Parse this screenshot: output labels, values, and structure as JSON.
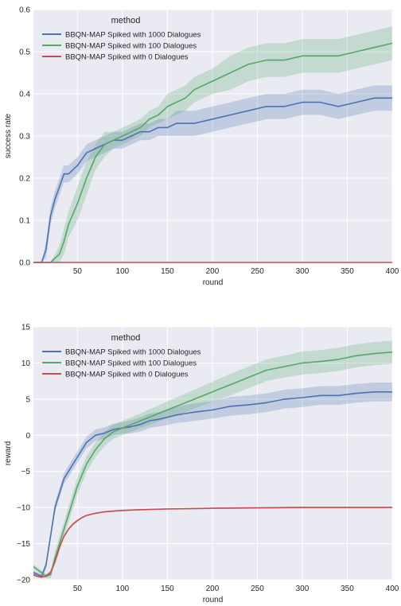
{
  "chart_data": [
    {
      "type": "line",
      "xlabel": "round",
      "ylabel": "success rate",
      "xlim": [
        1,
        400
      ],
      "ylim": [
        0.0,
        0.6
      ],
      "xticks": [
        50,
        100,
        150,
        200,
        250,
        300,
        350,
        400
      ],
      "yticks": [
        0.0,
        0.1,
        0.2,
        0.3,
        0.4,
        0.5,
        0.6
      ],
      "ytick_labels": [
        "0.0",
        "0.1",
        "0.2",
        "0.3",
        "0.4",
        "0.5",
        "0.6"
      ],
      "grid": true,
      "legend": {
        "title": "method",
        "placement": "top-left"
      },
      "series": [
        {
          "name": "BBQN-MAP Spiked with 1000 Dialogues",
          "color": "#4c72b0",
          "x": [
            1,
            10,
            15,
            20,
            25,
            30,
            35,
            40,
            50,
            60,
            70,
            80,
            90,
            100,
            110,
            120,
            130,
            140,
            150,
            160,
            170,
            180,
            200,
            220,
            240,
            260,
            280,
            300,
            320,
            340,
            360,
            380,
            400
          ],
          "y": [
            0.0,
            0.0,
            0.03,
            0.11,
            0.15,
            0.18,
            0.21,
            0.21,
            0.23,
            0.26,
            0.27,
            0.28,
            0.29,
            0.29,
            0.3,
            0.31,
            0.31,
            0.32,
            0.32,
            0.33,
            0.33,
            0.33,
            0.34,
            0.35,
            0.36,
            0.37,
            0.37,
            0.38,
            0.38,
            0.37,
            0.38,
            0.39,
            0.39
          ],
          "band": [
            0.0,
            0.0,
            0.02,
            0.02,
            0.02,
            0.02,
            0.02,
            0.02,
            0.02,
            0.02,
            0.02,
            0.02,
            0.02,
            0.02,
            0.02,
            0.02,
            0.02,
            0.02,
            0.02,
            0.03,
            0.03,
            0.03,
            0.03,
            0.03,
            0.03,
            0.03,
            0.03,
            0.03,
            0.03,
            0.03,
            0.03,
            0.03,
            0.03
          ]
        },
        {
          "name": "BBQN-MAP Spiked with 100 Dialogues",
          "color": "#55a868",
          "x": [
            1,
            20,
            25,
            30,
            35,
            40,
            50,
            60,
            70,
            80,
            90,
            100,
            110,
            120,
            130,
            140,
            150,
            160,
            170,
            180,
            200,
            220,
            240,
            260,
            280,
            300,
            320,
            340,
            360,
            380,
            400
          ],
          "y": [
            0.0,
            0.0,
            0.01,
            0.02,
            0.05,
            0.09,
            0.14,
            0.2,
            0.25,
            0.28,
            0.29,
            0.3,
            0.31,
            0.32,
            0.34,
            0.35,
            0.37,
            0.38,
            0.39,
            0.41,
            0.43,
            0.45,
            0.47,
            0.48,
            0.48,
            0.49,
            0.49,
            0.49,
            0.5,
            0.51,
            0.52
          ],
          "band": [
            0.0,
            0.0,
            0.01,
            0.02,
            0.03,
            0.03,
            0.04,
            0.04,
            0.03,
            0.03,
            0.02,
            0.02,
            0.02,
            0.02,
            0.02,
            0.02,
            0.03,
            0.03,
            0.03,
            0.03,
            0.03,
            0.04,
            0.04,
            0.04,
            0.04,
            0.04,
            0.04,
            0.04,
            0.04,
            0.04,
            0.04
          ]
        },
        {
          "name": "BBQN-MAP Spiked with 0 Dialogues",
          "color": "#c44e52",
          "x": [
            1,
            400
          ],
          "y": [
            0.0,
            0.0
          ],
          "band": [
            0.0,
            0.0
          ]
        }
      ]
    },
    {
      "type": "line",
      "xlabel": "round",
      "ylabel": "reward",
      "xlim": [
        1,
        400
      ],
      "ylim": [
        -20,
        15
      ],
      "xticks": [
        50,
        100,
        150,
        200,
        250,
        300,
        350,
        400
      ],
      "yticks": [
        -20,
        -15,
        -10,
        -5,
        0,
        5,
        10,
        15
      ],
      "ytick_labels": [
        "−20",
        "−15",
        "−10",
        "−5",
        "0",
        "5",
        "10",
        "15"
      ],
      "grid": true,
      "legend": {
        "title": "method",
        "placement": "top-left"
      },
      "series": [
        {
          "name": "BBQN-MAP Spiked with 1000 Dialogues",
          "color": "#4c72b0",
          "x": [
            1,
            10,
            15,
            20,
            25,
            30,
            35,
            40,
            50,
            60,
            70,
            80,
            90,
            100,
            110,
            120,
            130,
            140,
            150,
            160,
            170,
            180,
            200,
            220,
            240,
            260,
            280,
            300,
            320,
            340,
            360,
            380,
            400
          ],
          "y": [
            -19,
            -19.5,
            -18,
            -14,
            -10,
            -8,
            -6,
            -5,
            -3,
            -1,
            0,
            0.3,
            0.8,
            1,
            1.2,
            1.5,
            2,
            2.2,
            2.5,
            2.8,
            3,
            3.2,
            3.5,
            4,
            4.2,
            4.5,
            5,
            5.2,
            5.5,
            5.5,
            5.8,
            6,
            6
          ],
          "band": [
            0.3,
            0.3,
            0.5,
            0.6,
            0.7,
            0.7,
            0.7,
            0.8,
            0.8,
            0.8,
            0.8,
            0.8,
            0.8,
            0.8,
            0.9,
            1.0,
            1.0,
            1.0,
            1.1,
            1.1,
            1.2,
            1.2,
            1.2,
            1.3,
            1.3,
            1.3,
            1.3,
            1.3,
            1.3,
            1.3,
            1.3,
            1.3,
            1.3
          ]
        },
        {
          "name": "BBQN-MAP Spiked with 100 Dialogues",
          "color": "#55a868",
          "x": [
            1,
            10,
            15,
            20,
            25,
            30,
            35,
            40,
            50,
            60,
            70,
            80,
            90,
            100,
            110,
            120,
            130,
            140,
            150,
            160,
            170,
            180,
            200,
            220,
            240,
            260,
            280,
            300,
            320,
            340,
            360,
            380,
            400
          ],
          "y": [
            -18.2,
            -19,
            -19.5,
            -19.3,
            -17,
            -15,
            -13,
            -11,
            -7,
            -4,
            -2,
            -0.5,
            0.5,
            1,
            1.5,
            2,
            2.5,
            3,
            3.5,
            4,
            4.5,
            5,
            6,
            7,
            8,
            9,
            9.5,
            10,
            10.2,
            10.5,
            11,
            11.3,
            11.5
          ],
          "band": [
            0.3,
            0.3,
            0.3,
            0.5,
            0.9,
            1.0,
            1.0,
            1.1,
            1.2,
            1.1,
            1.0,
            1.0,
            1.0,
            1.0,
            1.0,
            1.0,
            1.1,
            1.1,
            1.2,
            1.2,
            1.3,
            1.3,
            1.4,
            1.5,
            1.5,
            1.5,
            1.5,
            1.6,
            1.6,
            1.6,
            1.6,
            1.6,
            1.6
          ]
        },
        {
          "name": "BBQN-MAP Spiked with 0 Dialogues",
          "color": "#c44e52",
          "x": [
            1,
            5,
            10,
            15,
            20,
            25,
            30,
            35,
            40,
            45,
            50,
            55,
            60,
            70,
            80,
            90,
            100,
            120,
            150,
            200,
            250,
            300,
            350,
            400
          ],
          "y": [
            -19.3,
            -19.5,
            -19.6,
            -19.5,
            -19,
            -17.5,
            -15.5,
            -14,
            -13,
            -12.3,
            -11.8,
            -11.4,
            -11.1,
            -10.8,
            -10.6,
            -10.5,
            -10.4,
            -10.3,
            -10.2,
            -10.1,
            -10.05,
            -10.0,
            -10.0,
            -10.0
          ],
          "band": [
            0.2,
            0.2,
            0.2,
            0.2,
            0.2,
            0.2,
            0.2,
            0.2,
            0.2,
            0.2,
            0.2,
            0.1,
            0.1,
            0.1,
            0.1,
            0.1,
            0.1,
            0.1,
            0.1,
            0.1,
            0.1,
            0.1,
            0.1,
            0.1
          ]
        }
      ]
    }
  ]
}
